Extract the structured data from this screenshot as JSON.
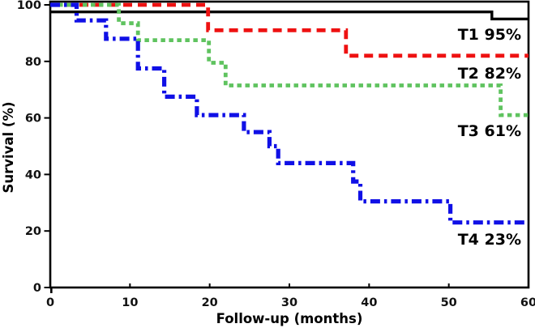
{
  "figure": {
    "kind": "kaplan-meier-survival-plot"
  },
  "chart_data": {
    "type": "line",
    "step_interpolation": "hv",
    "title": "",
    "xlabel": "Follow-up (months)",
    "ylabel": "Survival (%)",
    "xlim": [
      0,
      60
    ],
    "ylim": [
      0,
      100
    ],
    "x_ticks": [
      "0",
      "10",
      "20",
      "30",
      "40",
      "50",
      "60"
    ],
    "y_ticks": [
      "0",
      "20",
      "40",
      "60",
      "80",
      "100"
    ],
    "grid": false,
    "frame": "box",
    "legend_position": "in-plot-right-annotations",
    "series": [
      {
        "name": "T1",
        "annotation": "T1 95%",
        "final_value_pct": 95,
        "color": "#000000",
        "line_style": "solid",
        "steps": [
          [
            0,
            97.5
          ],
          [
            55.4,
            95
          ],
          [
            60,
            95
          ]
        ]
      },
      {
        "name": "T2",
        "annotation": "T2 82%",
        "final_value_pct": 82,
        "color": "#ee1111",
        "line_style": "dashed",
        "steps": [
          [
            0,
            100
          ],
          [
            19.8,
            91
          ],
          [
            37.1,
            82
          ],
          [
            60,
            82
          ]
        ]
      },
      {
        "name": "T3",
        "annotation": "T3 61%",
        "final_value_pct": 61,
        "color": "#5fc35f",
        "line_style": "dotted",
        "steps": [
          [
            0,
            100
          ],
          [
            8.6,
            93.5
          ],
          [
            11,
            87.5
          ],
          [
            19.9,
            79.5
          ],
          [
            22,
            71.5
          ],
          [
            56.5,
            61
          ],
          [
            60,
            61
          ]
        ]
      },
      {
        "name": "T4",
        "annotation": "T4 23%",
        "final_value_pct": 23,
        "color": "#1010e6",
        "line_style": "dash-dot",
        "steps": [
          [
            0,
            100
          ],
          [
            3.3,
            94.5
          ],
          [
            7,
            88
          ],
          [
            11,
            77.5
          ],
          [
            14.3,
            67.5
          ],
          [
            18.4,
            61
          ],
          [
            24.3,
            55
          ],
          [
            27.5,
            50
          ],
          [
            28.6,
            44
          ],
          [
            38,
            37.5
          ],
          [
            38.9,
            30.5
          ],
          [
            50.2,
            23
          ],
          [
            60,
            23
          ]
        ]
      }
    ]
  }
}
